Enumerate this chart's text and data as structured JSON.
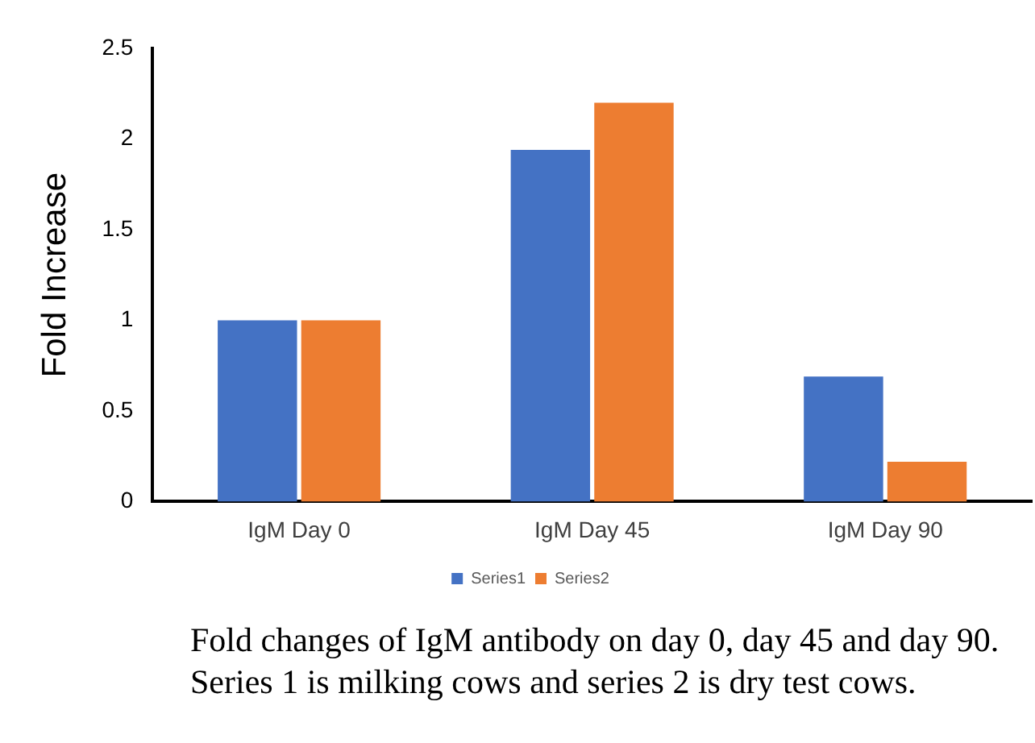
{
  "chart_data": {
    "type": "bar",
    "ylabel": "Fold Increase",
    "categories": [
      "IgM Day 0",
      "IgM Day 45",
      "IgM Day 90"
    ],
    "series": [
      {
        "name": "Series1",
        "color": "#4472c4",
        "values": [
          1,
          1.94,
          0.69
        ]
      },
      {
        "name": "Series2",
        "color": "#ed7d31",
        "values": [
          1,
          2.2,
          0.22
        ]
      }
    ],
    "ylim": [
      0,
      2.5
    ],
    "yticks": [
      0,
      0.5,
      1,
      1.5,
      2,
      2.5
    ],
    "grid": false,
    "legend": "bottom",
    "annotations": [
      "Fold changes of IgM antibody on day 0, day 45 and day 90. Series 1 is milking cows and series 2 is dry test cows."
    ]
  }
}
